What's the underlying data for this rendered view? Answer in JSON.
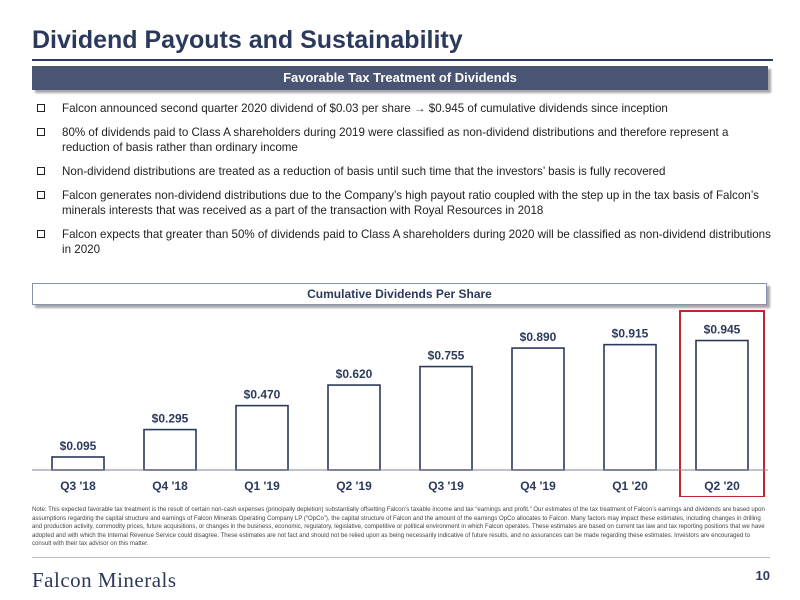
{
  "page": {
    "title": "Dividend Payouts and Sustainability",
    "page_number": "10"
  },
  "banner": {
    "text": "Favorable Tax Treatment of Dividends"
  },
  "bullets": [
    "Falcon announced second quarter 2020 dividend of $0.03 per share → $0.945 of cumulative dividends since inception",
    "80% of dividends paid to Class A shareholders during 2019 were classified as non-dividend distributions and therefore represent a reduction of basis rather than ordinary income",
    "Non-dividend distributions are treated as a reduction of basis until such time that the investors’ basis is fully recovered",
    "Falcon generates non-dividend distributions due to the Company’s high payout ratio coupled with the step up in the tax basis of Falcon’s minerals interests that was received as a part of the transaction with Royal Resources in 2018",
    "Falcon expects that greater than 50% of dividends paid to Class A shareholders during 2020 will be classified as non-dividend distributions in 2020"
  ],
  "chart_data": {
    "type": "bar",
    "title": "Cumulative Dividends Per Share",
    "categories": [
      "Q3 '18",
      "Q4 '18",
      "Q1 '19",
      "Q2 '19",
      "Q3 '19",
      "Q4 '19",
      "Q1 '20",
      "Q2 '20"
    ],
    "values": [
      0.095,
      0.295,
      0.47,
      0.62,
      0.755,
      0.89,
      0.915,
      0.945
    ],
    "data_labels": [
      "$0.095",
      "$0.295",
      "$0.470",
      "$0.620",
      "$0.755",
      "$0.890",
      "$0.915",
      "$0.945"
    ],
    "ylim": [
      0,
      1.0
    ],
    "highlight_category": "Q2 '20",
    "bar_color": "#ffffff",
    "bar_border_color": "#2b3a5c",
    "highlight_color": "#c0272d",
    "grid": false
  },
  "note": "Note: This expected favorable tax treatment is the result of certain non-cash expenses (principally depletion) substantially offsetting Falcon’s taxable income and tax “earnings and profit.” Our estimates of the tax treatment of Falcon’s earnings and dividends are based upon assumptions regarding the capital structure and earnings of Falcon Minerals Operating Company LP (“OpCo”), the capital structure of Falcon and the amount of the earnings OpCo allocates to Falcon. Many factors may impact these estimates, including changes in drilling and production activity, commodity prices, future acquisitions, or changes in the business, economic, regulatory, legislative, competitive or political environment in which Falcon operates. These estimates are based on current tax law and tax reporting positions that we have adopted and with which the Internal Revenue Service could disagree. These estimates are not fact and should not be relied upon as being necessarily indicative of future results, and no assurances can be made regarding these estimates. Investors are encouraged to consult with their tax advisor on this matter.",
  "footer": {
    "logo_text": "Falcon Minerals"
  }
}
